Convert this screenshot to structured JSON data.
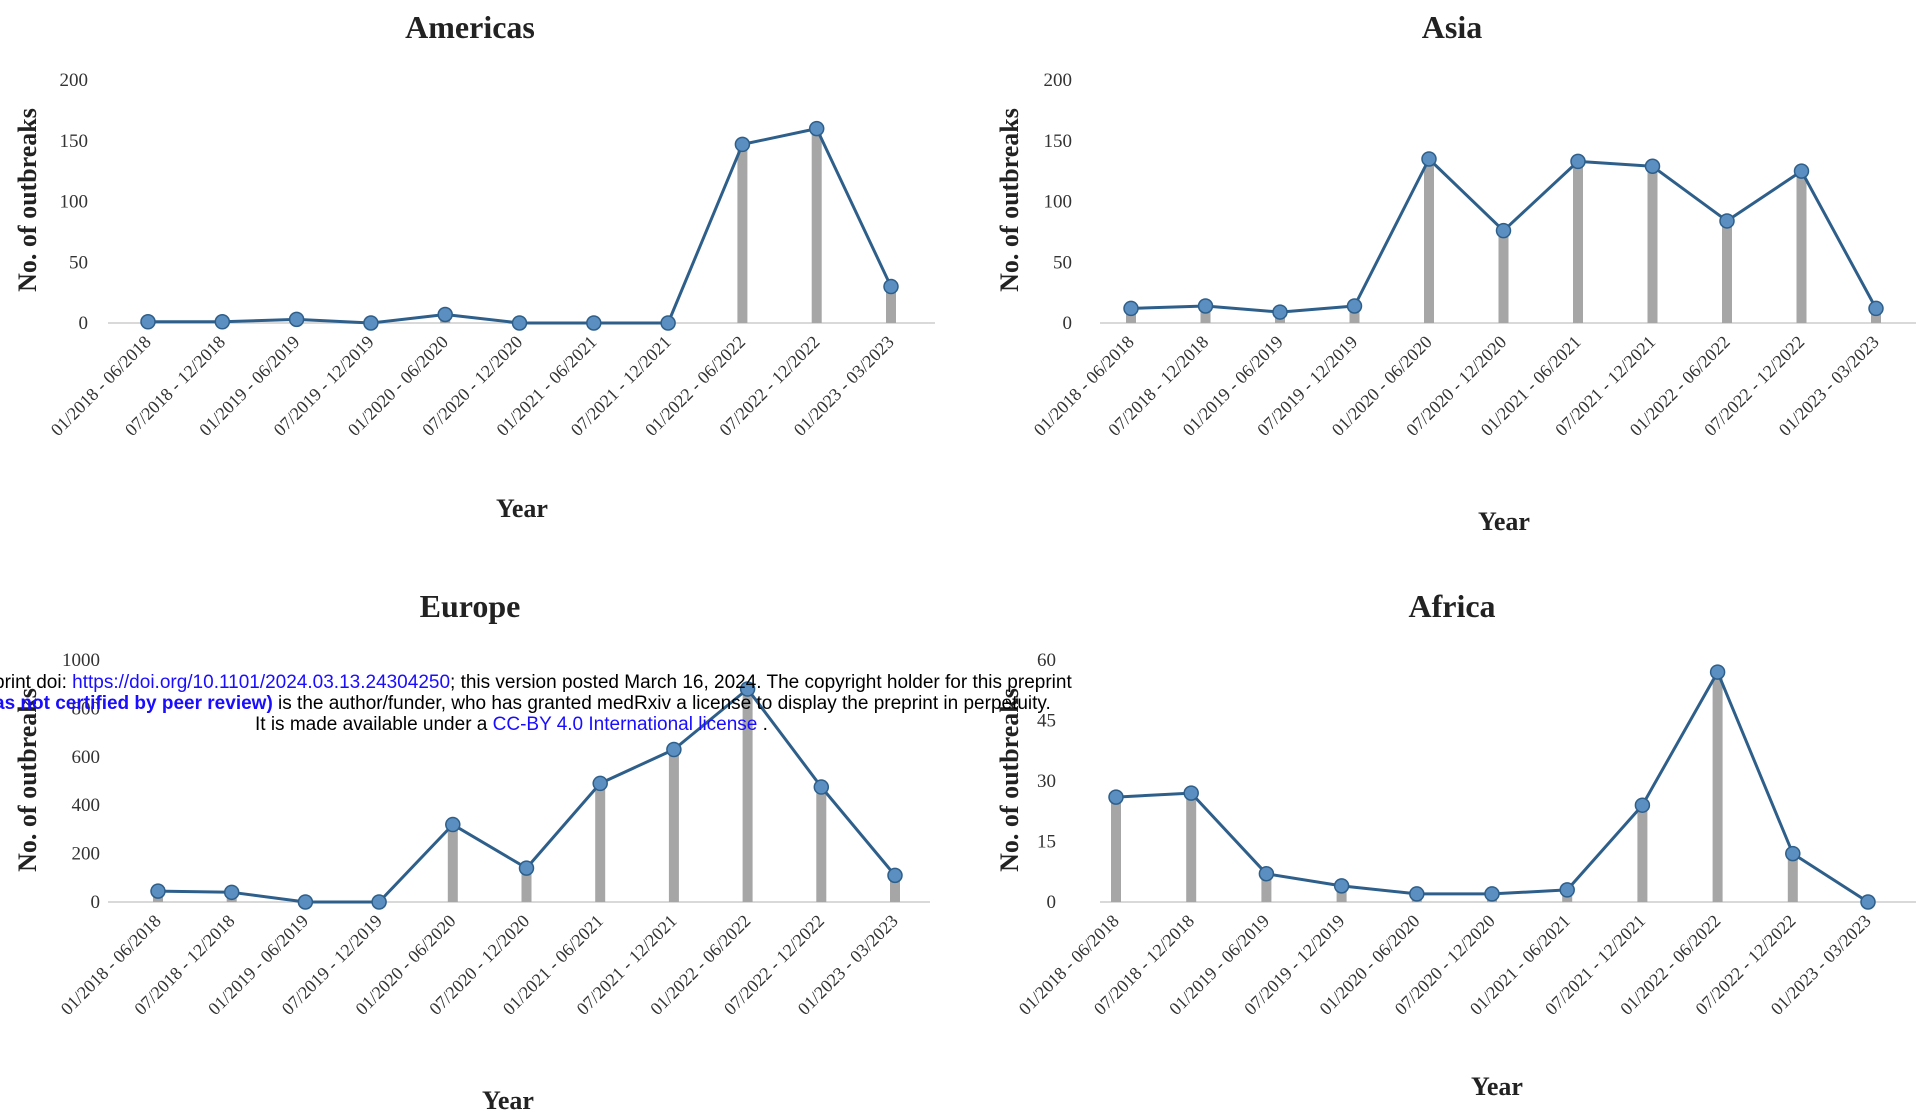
{
  "chart_data": [
    {
      "type": "line",
      "title": "Americas",
      "xlabel": "Year",
      "ylabel": "No. of outbreaks",
      "ylim": [
        0,
        200
      ],
      "yticks": [
        0,
        50,
        100,
        150,
        200
      ],
      "categories": [
        "01/2018 - 06/2018",
        "07/2018 - 12/2018",
        "01/2019 - 06/2019",
        "07/2019 - 12/2019",
        "01/2020 - 06/2020",
        "07/2020 - 12/2020",
        "01/2021 - 06/2021",
        "07/2021 - 12/2021",
        "01/2022 - 06/2022",
        "07/2022 - 12/2022",
        "01/2023 - 03/2023"
      ],
      "values": [
        1,
        1,
        3,
        0,
        7,
        0,
        0,
        0,
        147,
        160,
        30
      ]
    },
    {
      "type": "line",
      "title": "Asia",
      "xlabel": "Year",
      "ylabel": "No. of outbreaks",
      "ylim": [
        0,
        200
      ],
      "yticks": [
        0,
        50,
        100,
        150,
        200
      ],
      "categories": [
        "01/2018 - 06/2018",
        "07/2018 - 12/2018",
        "01/2019 - 06/2019",
        "07/2019 - 12/2019",
        "01/2020 - 06/2020",
        "07/2020 - 12/2020",
        "01/2021 - 06/2021",
        "07/2021 - 12/2021",
        "01/2022 - 06/2022",
        "07/2022 - 12/2022",
        "01/2023 - 03/2023"
      ],
      "values": [
        12,
        14,
        9,
        14,
        135,
        76,
        133,
        129,
        84,
        125,
        12
      ]
    },
    {
      "type": "line",
      "title": "Europe",
      "xlabel": "Year",
      "ylabel": "No. of outbreaks",
      "ylim": [
        0,
        1000
      ],
      "yticks": [
        0,
        200,
        400,
        600,
        800,
        1000
      ],
      "categories": [
        "01/2018 - 06/2018",
        "07/2018 - 12/2018",
        "01/2019 - 06/2019",
        "07/2019 - 12/2019",
        "01/2020 - 06/2020",
        "07/2020 - 12/2020",
        "01/2021 - 06/2021",
        "07/2021 - 12/2021",
        "01/2022 - 06/2022",
        "07/2022 - 12/2022",
        "01/2023 - 03/2023"
      ],
      "values": [
        45,
        40,
        0,
        0,
        320,
        140,
        490,
        630,
        880,
        475,
        110
      ]
    },
    {
      "type": "line",
      "title": "Africa",
      "xlabel": "Year",
      "ylabel": "No. of outbreaks",
      "ylim": [
        0,
        60
      ],
      "yticks": [
        0,
        15,
        30,
        45,
        60
      ],
      "categories": [
        "01/2018 - 06/2018",
        "07/2018 - 12/2018",
        "01/2019 - 06/2019",
        "07/2019 - 12/2019",
        "01/2020 - 06/2020",
        "07/2020 - 12/2020",
        "01/2021 - 06/2021",
        "07/2021 - 12/2021",
        "01/2022 - 06/2022",
        "07/2022 - 12/2022",
        "01/2023 - 03/2023"
      ],
      "values": [
        26,
        27,
        7,
        4,
        2,
        2,
        3,
        24,
        57,
        12,
        0
      ]
    }
  ],
  "colors": {
    "line": "#2e5f8a",
    "marker": "#5b8fc2",
    "bar": "#a6a6a6",
    "axis": "#d9d9d9"
  },
  "banner": {
    "line1_pre": "print doi: ",
    "doi_link": "https://doi.org/10.1101/2024.03.13.24304250",
    "line1_post": "; this version posted March 16, 2024. The copyright holder for this preprint",
    "line2_bold": "as not certified by peer review)",
    "line2_post": " is the author/funder, who has granted medRxiv a license to display the preprint in perpetuity.",
    "line3_pre": "It is made available under a ",
    "license_link": "CC-BY 4.0 International license",
    "line3_post": " ."
  }
}
